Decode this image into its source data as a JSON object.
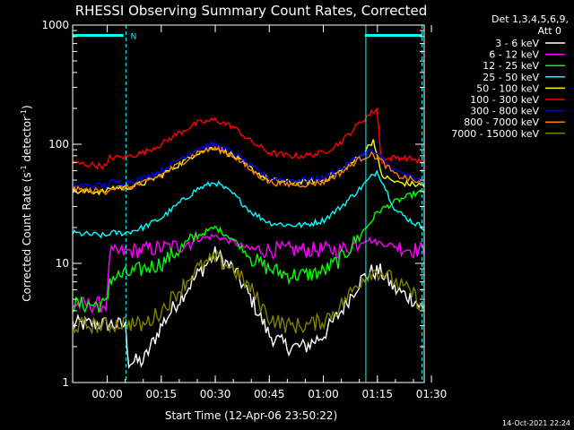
{
  "chart_data": {
    "type": "line",
    "title": "RHESSI Observing Summary Count Rates, Corrected",
    "xlabel": "Start Time (12-Apr-06 23:50:22)",
    "ylabel_main": "Corrected Count Rate (s",
    "ylabel_sup1": "-1",
    "ylabel_mid": " detector",
    "ylabel_sup2": "-1",
    "ylabel_end": ")",
    "yscale": "log",
    "ylim": [
      1,
      1000
    ],
    "xlim_min": [
      -9.6,
      88
    ],
    "x_unit": "minutes after 00:00 (13-Apr-06)",
    "x_ticks": [
      {
        "t": 0,
        "label": "00:00"
      },
      {
        "t": 15,
        "label": "00:15"
      },
      {
        "t": 30,
        "label": "00:30"
      },
      {
        "t": 45,
        "label": "00:45"
      },
      {
        "t": 60,
        "label": "01:00"
      },
      {
        "t": 75,
        "label": "01:15"
      },
      {
        "t": 90,
        "label": "01:30"
      }
    ],
    "y_ticks": [
      {
        "v": 1,
        "label": "1"
      },
      {
        "v": 10,
        "label": "10"
      },
      {
        "v": 100,
        "label": "100"
      },
      {
        "v": 1000,
        "label": "1000"
      }
    ],
    "legend_header": [
      "Det 1,3,4,5,6,9,",
      "Att 0"
    ],
    "legend_position": "top-right",
    "series": [
      {
        "name": "3 - 6 keV",
        "color": "#ffffff",
        "x": [
          -10,
          0,
          5,
          6,
          10,
          15,
          20,
          25,
          30,
          35,
          40,
          45,
          50,
          55,
          60,
          65,
          70,
          73,
          76,
          80,
          85,
          88
        ],
        "y": [
          3.1,
          3.1,
          3,
          1.5,
          1.5,
          3,
          5,
          8,
          12,
          9,
          5,
          2.5,
          2,
          2,
          2.5,
          4,
          7,
          8.5,
          8.5,
          6,
          5,
          4
        ]
      },
      {
        "name": "6 - 12 keV",
        "color": "#ff00ff",
        "x": [
          -10,
          0,
          0.5,
          10,
          20,
          25,
          30,
          35,
          40,
          45,
          50,
          55,
          60,
          65,
          70,
          72,
          75,
          80,
          85,
          88
        ],
        "y": [
          4.5,
          4.5,
          12,
          13,
          14,
          16,
          17,
          15,
          13,
          13,
          13,
          13,
          13,
          13,
          15,
          16,
          15,
          14,
          13,
          13
        ]
      },
      {
        "name": "12 - 25 keV",
        "color": "#00ff00",
        "x": [
          -10,
          0,
          0.5,
          5,
          10,
          15,
          20,
          25,
          30,
          35,
          40,
          45,
          50,
          55,
          60,
          65,
          70,
          73,
          75,
          80,
          85,
          88
        ],
        "y": [
          4.5,
          4.5,
          7.5,
          8,
          9,
          10,
          13,
          17,
          20,
          16,
          11,
          9,
          8,
          8,
          8.5,
          11,
          17,
          22,
          27,
          33,
          38,
          40
        ]
      },
      {
        "name": "25 - 50 keV",
        "color": "#00ffff",
        "x": [
          -10,
          0,
          0.5,
          5,
          10,
          15,
          20,
          25,
          30,
          35,
          40,
          45,
          50,
          55,
          60,
          65,
          70,
          73,
          75,
          80,
          85,
          88
        ],
        "y": [
          18,
          17,
          18,
          18,
          20,
          24,
          32,
          42,
          48,
          38,
          27,
          22,
          21,
          21,
          23,
          30,
          42,
          52,
          60,
          28,
          22,
          20
        ]
      },
      {
        "name": "50 - 100 keV",
        "color": "#ffff00",
        "x": [
          -10,
          0,
          0.5,
          5,
          10,
          15,
          20,
          25,
          30,
          35,
          40,
          45,
          50,
          55,
          60,
          65,
          70,
          73,
          74,
          76,
          80,
          85,
          88
        ],
        "y": [
          40,
          40,
          43,
          43,
          47,
          55,
          68,
          85,
          95,
          80,
          62,
          50,
          48,
          48,
          50,
          60,
          78,
          100,
          110,
          55,
          48,
          46,
          45
        ]
      },
      {
        "name": "100 - 300 keV",
        "color": "#ff0000",
        "x": [
          -10,
          0,
          0.5,
          5,
          10,
          15,
          20,
          25,
          30,
          35,
          40,
          45,
          50,
          55,
          60,
          65,
          70,
          73,
          75,
          76,
          80,
          85,
          88
        ],
        "y": [
          70,
          65,
          77,
          78,
          85,
          100,
          125,
          150,
          160,
          140,
          105,
          85,
          80,
          80,
          85,
          105,
          150,
          180,
          200,
          72,
          78,
          75,
          70
        ]
      },
      {
        "name": "300 - 800 keV",
        "color": "#0000ff",
        "x": [
          -10,
          0,
          0.5,
          5,
          10,
          15,
          20,
          25,
          30,
          35,
          40,
          45,
          50,
          55,
          60,
          65,
          70,
          73,
          75,
          80,
          85,
          88
        ],
        "y": [
          45,
          45,
          48,
          48,
          52,
          60,
          75,
          92,
          100,
          85,
          65,
          52,
          50,
          50,
          52,
          62,
          80,
          88,
          82,
          60,
          52,
          48
        ]
      },
      {
        "name": "800 - 7000 keV",
        "color": "#ff8000",
        "x": [
          -10,
          0,
          0.5,
          5,
          10,
          15,
          20,
          25,
          30,
          35,
          40,
          45,
          50,
          55,
          60,
          65,
          70,
          73,
          75,
          80,
          85,
          88
        ],
        "y": [
          42,
          40,
          43,
          43,
          47,
          55,
          68,
          85,
          92,
          80,
          60,
          48,
          46,
          46,
          48,
          58,
          75,
          82,
          78,
          55,
          50,
          45
        ]
      },
      {
        "name": "7000 - 15000 keV",
        "color": "#808000",
        "x": [
          -10,
          0,
          5,
          10,
          15,
          20,
          25,
          30,
          35,
          40,
          45,
          50,
          55,
          60,
          65,
          70,
          73,
          76,
          80,
          85,
          88
        ],
        "y": [
          3,
          3,
          3.2,
          3,
          4,
          6,
          9,
          11,
          9,
          6,
          3.5,
          3,
          3,
          3.3,
          4.5,
          7,
          8.5,
          8.5,
          7,
          5.5,
          4
        ]
      }
    ],
    "hline_markers": [
      {
        "x0": -9.6,
        "x1": 4.5,
        "y": 820,
        "color": "#00ffff"
      },
      {
        "x0": 71.5,
        "x1": 87.5,
        "y": 820,
        "color": "#00ffff"
      }
    ],
    "vlines": [
      {
        "t": -9.6,
        "style": "solid",
        "color": "#00ffff"
      },
      {
        "t": 5.2,
        "style": "dashed",
        "color": "#00ffff"
      },
      {
        "t": 71.8,
        "style": "solid",
        "color": "#00ffff"
      },
      {
        "t": 87.4,
        "style": "dashed",
        "color": "#00ffff"
      }
    ],
    "annotation_n": {
      "text": "N",
      "t": 6.5,
      "v": 820
    },
    "timestamp": "14-Oct-2021 22:24"
  }
}
